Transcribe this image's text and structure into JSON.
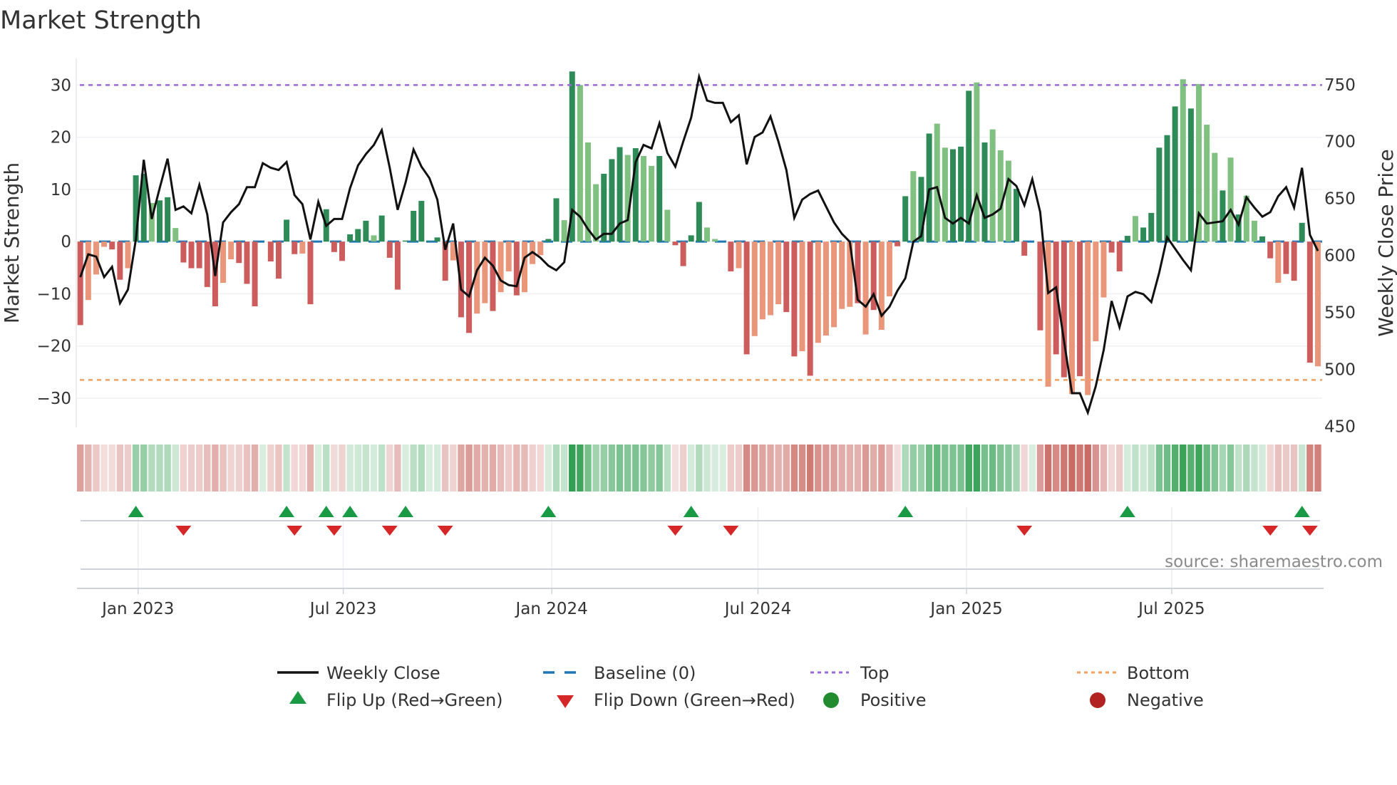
{
  "chart_data": {
    "type": "bar",
    "title": "Market Strength",
    "ylabel": "Market Strength",
    "y2label": "Weekly Close Price",
    "ylim": [
      -35.6,
      35.1
    ],
    "y2lim": [
      449,
      773
    ],
    "yticks": [
      -30,
      -20,
      -10,
      0,
      10,
      20,
      30
    ],
    "yticklabels": [
      "−30",
      "−20",
      "−10",
      "0",
      "10",
      "20",
      "30"
    ],
    "y2ticks": [
      450,
      500,
      550,
      600,
      650,
      700,
      750
    ],
    "y2ticklabels": [
      "450",
      "500",
      "550",
      "600",
      "650",
      "700",
      "750"
    ],
    "start_date": "2022-11-11",
    "interval_days": 7,
    "xticks": [
      {
        "date": "2023-01-01",
        "label": "Jan 2023"
      },
      {
        "date": "2023-07-01",
        "label": "Jul 2023"
      },
      {
        "date": "2024-01-01",
        "label": "Jan 2024"
      },
      {
        "date": "2024-07-01",
        "label": "Jul 2024"
      },
      {
        "date": "2025-01-01",
        "label": "Jan 2025"
      },
      {
        "date": "2025-07-01",
        "label": "Jul 2025"
      }
    ],
    "top_level": 30,
    "bottom_level": -26.5,
    "strength": [
      -16.0,
      -11.2,
      -6.3,
      -1.0,
      -1.5,
      -7.3,
      -5.1,
      12.7,
      13.0,
      7.4,
      7.9,
      8.5,
      2.6,
      -4.0,
      -5.1,
      -5.1,
      -8.7,
      -12.4,
      -7.9,
      -3.4,
      -4.1,
      -8.1,
      -12.4,
      0,
      -3.8,
      -7.1,
      4.2,
      -2.4,
      -2.3,
      -12.0,
      0,
      6.2,
      -2.0,
      -3.7,
      1.4,
      2.4,
      4.0,
      1.2,
      5.0,
      -3.1,
      -9.2,
      0.2,
      5.9,
      7.8,
      0.1,
      0.8,
      -7.5,
      -3.6,
      -14.5,
      -17.5,
      -13.8,
      -11.8,
      -13.3,
      -9.7,
      -5.7,
      -10.3,
      -9.7,
      -4.3,
      -2.6,
      0.5,
      8.3,
      4.1,
      32.6,
      30.0,
      19.0,
      11.0,
      13.0,
      15.8,
      18.1,
      16.6,
      17.9,
      16.4,
      14.5,
      16.4,
      6.1,
      -0.7,
      -4.7,
      1.2,
      7.6,
      2.7,
      0.5,
      0,
      -5.7,
      -5.1,
      -21.6,
      -18.1,
      -14.9,
      -14.1,
      -12.0,
      -13.5,
      -22.0,
      -21.0,
      -25.7,
      -19.4,
      -18.0,
      -16.4,
      -12.9,
      -12.5,
      -11.8,
      -17.8,
      -13.1,
      -16.9,
      -10.5,
      -0.9,
      8.7,
      13.5,
      12.4,
      20.7,
      22.6,
      18.0,
      17.7,
      18.2,
      28.9,
      30.5,
      19.0,
      21.5,
      17.5,
      15.5,
      10.1,
      -2.7,
      0,
      -17.0,
      -27.8,
      -21.6,
      -26.0,
      -29.2,
      -25.8,
      -29.4,
      -19.1,
      -10.7,
      -2.1,
      -5.7,
      1.1,
      4.9,
      2.7,
      5.5,
      18.0,
      20.4,
      25.9,
      31.1,
      25.5,
      30.2,
      22.4,
      17.0,
      9.8,
      16.1,
      5.2,
      8.8,
      4.0,
      1.0,
      -3.2,
      -7.9,
      -6.2,
      -7.5,
      3.6,
      -23.2,
      -23.9
    ],
    "strength_shade": "DLLLDDLDDLDDLDDDDDLLDDDDDDDDLDDDDDDDDLDDDDDDDDDLDDLLDLLDLLLDDLDLLLDDDLDLLDLDDDDLLDDLDLLLLDDLDLLLLLDLDLLDDLDDLLDDDLDLLLDDDDLDDLDLLLDDDLDDDDDLDLLLDLDLLDDLDDDD",
    "weekly_close": [
      581,
      601,
      599,
      581,
      590,
      558,
      570,
      614,
      684,
      632,
      659,
      685,
      640,
      643,
      637,
      662,
      636,
      582,
      629,
      638,
      645,
      660,
      660,
      681,
      677,
      675,
      682,
      653,
      645,
      614,
      647,
      626,
      632,
      632,
      659,
      679,
      689,
      697,
      710,
      677,
      640,
      664,
      693,
      678,
      668,
      649,
      605,
      628,
      570,
      564,
      587,
      598,
      591,
      578,
      574,
      573,
      598,
      603,
      598,
      591,
      587,
      594,
      640,
      634,
      623,
      614,
      619,
      619,
      628,
      631,
      682,
      697,
      694,
      716,
      690,
      678,
      700,
      721,
      757,
      736,
      734,
      734,
      717,
      723,
      680,
      704,
      708,
      722,
      700,
      675,
      633,
      649,
      654,
      657,
      643,
      629,
      619,
      612,
      561,
      555,
      566,
      547,
      555,
      569,
      580,
      612,
      617,
      658,
      660,
      633,
      628,
      633,
      628,
      653,
      633,
      636,
      641,
      667,
      661,
      644,
      667,
      638,
      567,
      572,
      525,
      479,
      479,
      462,
      485,
      517,
      560,
      537,
      564,
      568,
      566,
      559,
      585,
      616,
      606,
      596,
      587,
      637,
      628,
      629,
      630,
      640,
      627,
      651,
      642,
      634,
      638,
      652,
      660,
      642,
      677,
      618,
      604
    ],
    "flip_up": [
      7,
      26,
      31,
      34,
      41,
      59,
      77,
      104,
      132,
      154
    ],
    "flip_down": [
      13,
      27,
      32,
      39,
      46,
      75,
      82,
      119,
      150,
      155
    ],
    "colors": {
      "pos_strong": "#2e8a57",
      "pos_weak": "#80c080",
      "neg_strong": "#cd5c5c",
      "neg_weak": "#e9967a",
      "close": "#111111",
      "baseline": "#1f77b4",
      "top": "#9a6ad6",
      "bottom": "#f0a060",
      "flip_up": "#1a9a45",
      "flip_down": "#d62728",
      "strip_pos": "#2f9e4f",
      "strip_neg": "#c45c55"
    },
    "legend": {
      "weekly_close": "Weekly Close",
      "baseline": "Baseline (0)",
      "top": "Top",
      "bottom": "Bottom",
      "flip_up": "Flip Up (Red→Green)",
      "flip_down": "Flip Down (Green→Red)",
      "positive": "Positive",
      "negative": "Negative"
    },
    "legend_placement": "bottom",
    "source": "source: sharemaestro.com"
  }
}
